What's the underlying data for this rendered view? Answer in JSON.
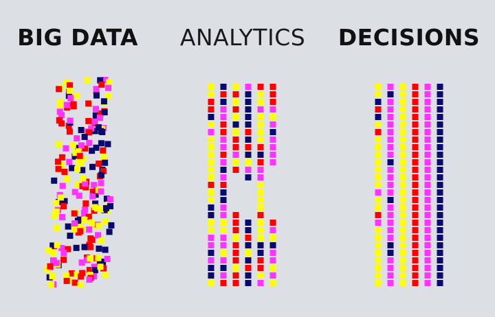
{
  "headings": {
    "big_data": "BIG DATA",
    "analytics": "ANALYTICS",
    "decisions": "DECISIONS"
  },
  "colors": {
    "yellow": "#ffff00",
    "magenta": "#ff33ff",
    "red": "#ff0000",
    "navy": "#0a0a6e",
    "background": "#dcdfe4"
  },
  "decisions_columns": [
    "yellow",
    "magenta",
    "yellow",
    "red",
    "magenta",
    "navy"
  ]
}
